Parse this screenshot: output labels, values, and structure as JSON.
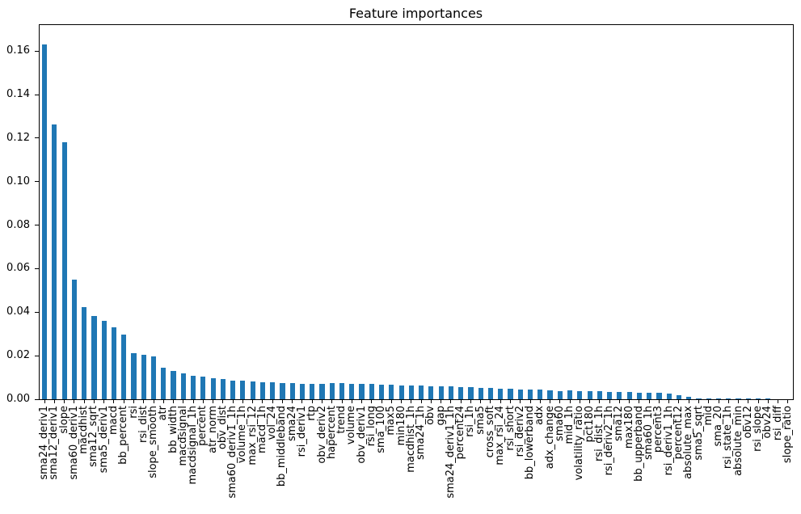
{
  "chart_data": {
    "type": "bar",
    "title": "Feature importances",
    "xlabel": "",
    "ylabel": "",
    "grid": false,
    "legend": null,
    "bar_color": "#1f77b4",
    "ylim": [
      0,
      0.172
    ],
    "yticks": [
      0.0,
      0.02,
      0.04,
      0.06,
      0.08,
      0.1,
      0.12,
      0.14,
      0.16
    ],
    "xtick_rotation": 90,
    "categories": [
      "sma24_deriv1",
      "sma12_deriv1",
      "slope",
      "sma60_deriv1",
      "macdhist",
      "sma12_sqrt",
      "sma5_deriv1",
      "macd",
      "bb_percent",
      "rsi",
      "rsi_dist",
      "slope_smooth",
      "atr",
      "bb_width",
      "macdsignal",
      "macdsignal_1h",
      "percent",
      "atr_norm",
      "obv_dist",
      "sma60_deriv1_1h",
      "volume_1h",
      "max_rsi_12",
      "macd_1h",
      "vol_24",
      "bb_middleband",
      "sma24",
      "rsi_deriv1",
      "rtp",
      "obv_deriv2",
      "hapercent",
      "trend",
      "volume",
      "obv_deriv1",
      "rsi_long",
      "sma_100",
      "max5",
      "min180",
      "macdhist_1h",
      "sma24_1h",
      "obv",
      "gap",
      "sma24_deriv1_1h",
      "percent24",
      "rsi_1h",
      "sma5",
      "cross_soft",
      "max_rsi_24",
      "rsi_short",
      "rsi_deriv2",
      "bb_lowerband",
      "adx",
      "adx_change",
      "sma60",
      "mid_1h",
      "volatility_ratio",
      "pct180",
      "rsi_dist_1h",
      "rsi_deriv2_1h",
      "sma12",
      "max180",
      "bb_upperband",
      "sma60_1h",
      "percent3",
      "rsi_deriv1_1h",
      "percent12",
      "absolute_max",
      "sma5_sqrt",
      "mid",
      "sma_20",
      "rsi_state_1h",
      "absolute_min",
      "obv12",
      "rsi_slope",
      "obv24",
      "rsi_diff",
      "slope_ratio"
    ],
    "values": [
      0.163,
      0.1262,
      0.118,
      0.0551,
      0.0425,
      0.0382,
      0.036,
      0.0331,
      0.0297,
      0.0213,
      0.0203,
      0.0197,
      0.0146,
      0.013,
      0.012,
      0.0106,
      0.0103,
      0.0097,
      0.0092,
      0.0086,
      0.0085,
      0.0081,
      0.0079,
      0.0077,
      0.0075,
      0.0073,
      0.0072,
      0.0071,
      0.0072,
      0.0073,
      0.0074,
      0.0072,
      0.007,
      0.0069,
      0.0068,
      0.0067,
      0.0065,
      0.0064,
      0.0063,
      0.0061,
      0.0059,
      0.0058,
      0.0056,
      0.0055,
      0.0053,
      0.0051,
      0.005,
      0.0048,
      0.0046,
      0.0044,
      0.0043,
      0.0041,
      0.0039,
      0.004,
      0.0037,
      0.0036,
      0.0037,
      0.0034,
      0.0035,
      0.0032,
      0.0031,
      0.003,
      0.0028,
      0.0026,
      0.002,
      0.0013,
      0.0005,
      0.0004,
      0.0004,
      0.0003,
      0.0003,
      0.0002,
      0.0002,
      0.0002,
      0.0001,
      0.0001
    ]
  }
}
